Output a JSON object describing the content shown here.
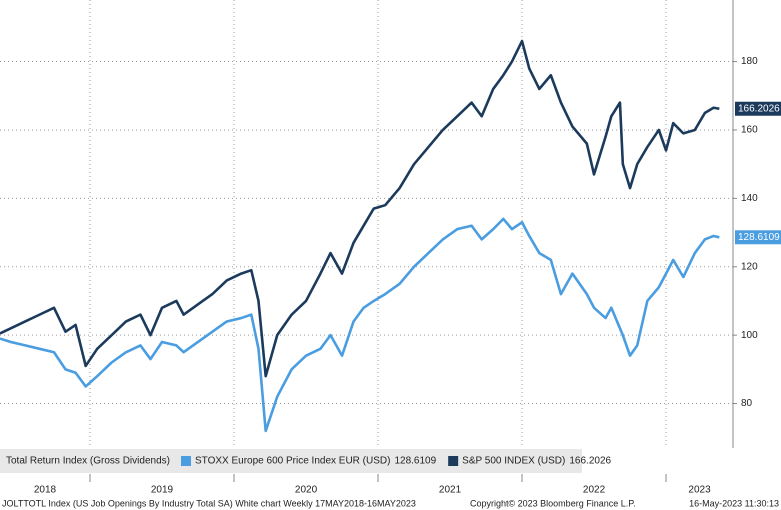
{
  "chart_data": {
    "type": "line",
    "legend_title": "Total Return Index (Gross Dividends)",
    "x": [
      2018.375,
      2018.45,
      2018.55,
      2018.65,
      2018.75,
      2018.83,
      2018.9,
      2018.97,
      2019.05,
      2019.15,
      2019.25,
      2019.35,
      2019.42,
      2019.5,
      2019.6,
      2019.65,
      2019.75,
      2019.85,
      2019.95,
      2020.05,
      2020.12,
      2020.17,
      2020.22,
      2020.3,
      2020.4,
      2020.5,
      2020.6,
      2020.67,
      2020.75,
      2020.83,
      2020.9,
      2020.97,
      2021.05,
      2021.15,
      2021.25,
      2021.35,
      2021.45,
      2021.55,
      2021.65,
      2021.72,
      2021.8,
      2021.87,
      2021.93,
      2022.0,
      2022.05,
      2022.12,
      2022.2,
      2022.27,
      2022.35,
      2022.45,
      2022.5,
      2022.58,
      2022.62,
      2022.68,
      2022.7,
      2022.75,
      2022.8,
      2022.87,
      2022.95,
      2023.0,
      2023.05,
      2023.12,
      2023.2,
      2023.27,
      2023.33,
      2023.37
    ],
    "series": [
      {
        "name": "STOXX Europe 600 Price Index EUR (USD)",
        "color": "#4a9de0",
        "values": [
          99,
          98,
          97,
          96,
          95,
          90,
          89,
          85,
          88,
          92,
          95,
          97,
          93,
          98,
          97,
          95,
          98,
          101,
          104,
          105,
          106,
          96,
          72,
          82,
          90,
          94,
          96,
          100,
          94,
          104,
          108,
          110,
          112,
          115,
          120,
          124,
          128,
          131,
          132,
          128,
          131,
          134,
          131,
          133,
          129,
          124,
          122,
          112,
          118,
          112,
          108,
          105,
          108,
          102,
          100,
          94,
          97,
          110,
          114,
          118,
          122,
          117,
          124,
          128,
          129,
          128.6109
        ]
      },
      {
        "name": "S&P 500 INDEX (USD)",
        "color": "#1b3a5c",
        "values": [
          100.5,
          102,
          104,
          106,
          108,
          101,
          103,
          91,
          96,
          100,
          104,
          106,
          100,
          108,
          110,
          106,
          109,
          112,
          116,
          118,
          119,
          110,
          88,
          100,
          106,
          110,
          118,
          124,
          118,
          127,
          132,
          137,
          138,
          143,
          150,
          155,
          160,
          164,
          168,
          164,
          172,
          176,
          180,
          186,
          178,
          172,
          176,
          168,
          161,
          156,
          147,
          158,
          164,
          168,
          150,
          143,
          150,
          155,
          160,
          154,
          162,
          159,
          160,
          165,
          166.5,
          166.2026
        ]
      }
    ],
    "xlim": [
      2018.375,
      2023.465
    ],
    "xticks": [
      2018,
      2019,
      2020,
      2021,
      2022,
      2023
    ],
    "ylim": [
      67,
      198
    ],
    "yticks": [
      80,
      100,
      120,
      140,
      160,
      180
    ],
    "grid": true,
    "footer_left": "JOLTTOTL Index (US Job Openings By Industry Total SA) White chart  Weekly 17MAY2018-16MAY2023",
    "footer_center": "Copyright© 2023 Bloomberg Finance L.P.",
    "footer_right": "16-May-2023 11:30:13"
  }
}
